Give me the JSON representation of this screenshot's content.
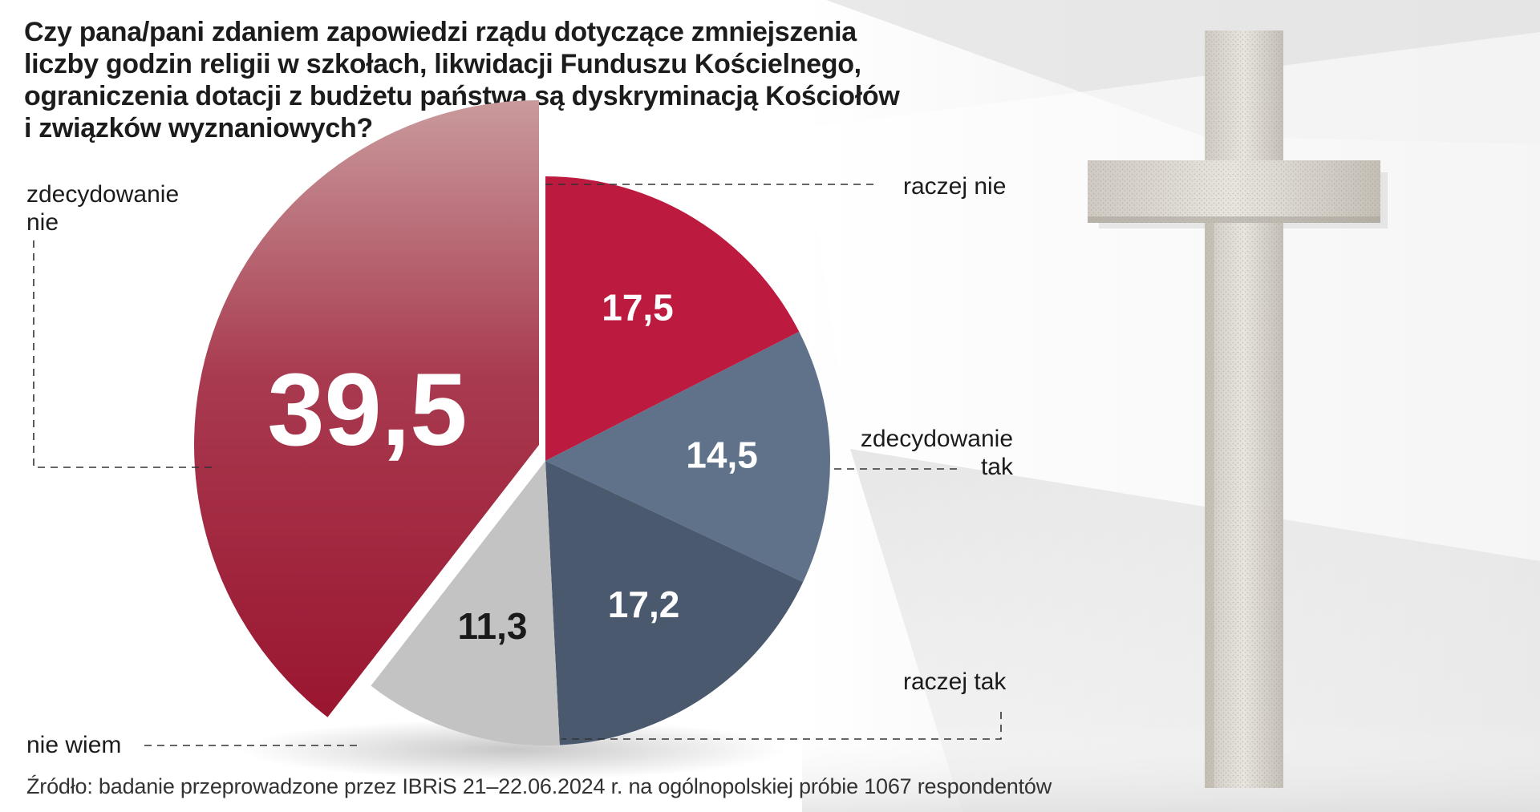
{
  "title": "Czy pana/pani zdaniem zapowiedzi rządu dotyczące zmniejszenia\nliczby godzin religii w szkołach, likwidacji Funduszu Kościelnego,\nograniczenia dotacji z budżetu państwa są dyskryminacją Kościołów\ni związków wyznaniowych?",
  "source": "Źródło: badanie przeprowadzone przez IBRiS  21–22.06.2024 r. na ogólnopolskiej próbie 1067 respondentów",
  "chart_data": {
    "type": "pie",
    "title": "Czy pana/pani zdaniem zapowiedzi rządu dotyczące zmniejszenia liczby godzin religii w szkołach, likwidacji Funduszu Kościelnego, ograniczenia dotacji z budżetu państwa są dyskryminacją Kościołów i związków wyznaniowych?",
    "unit": "",
    "slices": [
      {
        "label": "raczej nie",
        "value": 17.5,
        "display": "17,5",
        "color": "#bd1a40",
        "text_color": "#ffffff"
      },
      {
        "label": "zdecydowanie tak",
        "value": 14.5,
        "display": "14,5",
        "color": "#5f7289",
        "text_color": "#ffffff"
      },
      {
        "label": "raczej tak",
        "value": 17.2,
        "display": "17,2",
        "color": "#4a596d",
        "text_color": "#ffffff"
      },
      {
        "label": "nie wiem",
        "value": 11.3,
        "display": "11,3",
        "color": "#c3c3c3",
        "text_color": "#1a1a1a"
      },
      {
        "label": "zdecydowanie nie",
        "value": 39.5,
        "display": "39,5",
        "color": "#a3213f",
        "color_top": "#c99a9c",
        "text_color": "#ffffff",
        "exploded": true
      }
    ],
    "start_angle": "12 o'clock, clockwise"
  },
  "labels": {
    "raczej_nie": "raczej nie",
    "zdecydowanie_tak": "zdecydowanie\ntak",
    "raczej_tak": "raczej tak",
    "nie_wiem": "nie wiem",
    "zdecydowanie_nie": "zdecydowanie\nnie"
  },
  "colors": {
    "background": "#ffffff",
    "wall_shadow": "#e4e4e4",
    "cross": "#dcd9d3",
    "leader_line": "#333333"
  },
  "image": {
    "subject": "stone cross on light wall"
  }
}
